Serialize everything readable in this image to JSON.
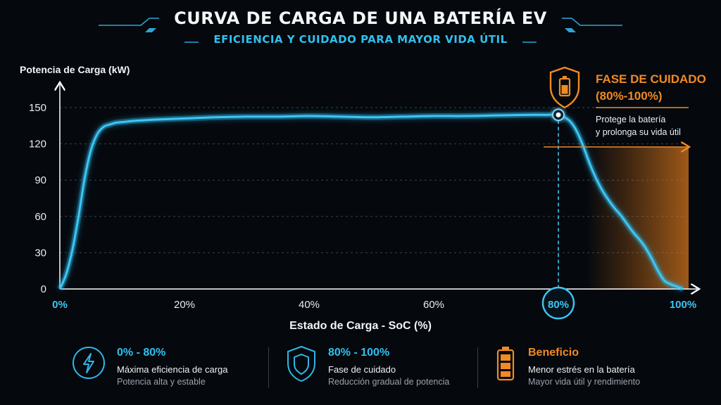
{
  "header": {
    "title": "CURVA DE CARGA DE UNA BATERÍA EV",
    "subtitle": "EFICIENCIA Y CUIDADO PARA MAYOR VIDA ÚTIL"
  },
  "colors": {
    "curve": "#29b9ee",
    "accent_orange": "#f08a24",
    "background": "#05080d"
  },
  "chart_data": {
    "type": "line",
    "ylabel": "Potencia de Carga (kW)",
    "xlabel": "Estado de Carga - SoC (%)",
    "xlim": [
      0,
      100
    ],
    "ylim": [
      0,
      150
    ],
    "y_ticks": [
      0,
      30,
      60,
      90,
      120,
      150
    ],
    "x_ticks": [
      {
        "value": 0,
        "label": "0%"
      },
      {
        "value": 20,
        "label": "20%"
      },
      {
        "value": 40,
        "label": "40%"
      },
      {
        "value": 60,
        "label": "60%"
      },
      {
        "value": 80,
        "label": "80%"
      },
      {
        "value": 100,
        "label": "100%"
      }
    ],
    "grid": true,
    "series": [
      {
        "x": [
          0,
          1,
          2,
          3,
          4,
          5,
          6,
          7,
          8,
          9,
          10,
          12,
          15,
          20,
          25,
          30,
          35,
          40,
          45,
          50,
          55,
          60,
          65,
          70,
          75,
          78,
          80,
          81,
          82,
          83,
          84,
          85,
          86,
          87,
          88,
          89,
          90,
          91,
          92,
          93,
          94,
          95,
          96,
          97,
          98,
          99,
          100
        ],
        "y": [
          0,
          12,
          32,
          60,
          92,
          115,
          128,
          134,
          136,
          137.5,
          138,
          139,
          140,
          141,
          142,
          142.5,
          142.5,
          143,
          142.5,
          142,
          142.5,
          143,
          143,
          143.5,
          144,
          144,
          144,
          142,
          138,
          130,
          118,
          104,
          92,
          82,
          74,
          67,
          61,
          54,
          47,
          41,
          34,
          25,
          15,
          7,
          4,
          2,
          0
        ]
      }
    ],
    "highlight_point": {
      "x": 80,
      "y": 144
    },
    "phase_annotation": {
      "title_line1": "FASE DE CUIDADO",
      "title_line2": "(80%-100%)",
      "text_line1": "Protege la batería",
      "text_line2": "y prolonga su vida útil"
    }
  },
  "legend": [
    {
      "title": "0% - 80%",
      "desc": "Máxima eficiencia de carga",
      "sub": "Potencia alta y estable",
      "icon": "lightning-icon"
    },
    {
      "title": "80% - 100%",
      "desc": "Fase de cuidado",
      "sub": "Reducción gradual de potencia",
      "icon": "shield-icon"
    },
    {
      "title": "Beneficio",
      "desc": "Menor estrés en la batería",
      "sub": "Mayor vida útil y rendimiento",
      "icon": "battery-icon"
    }
  ]
}
